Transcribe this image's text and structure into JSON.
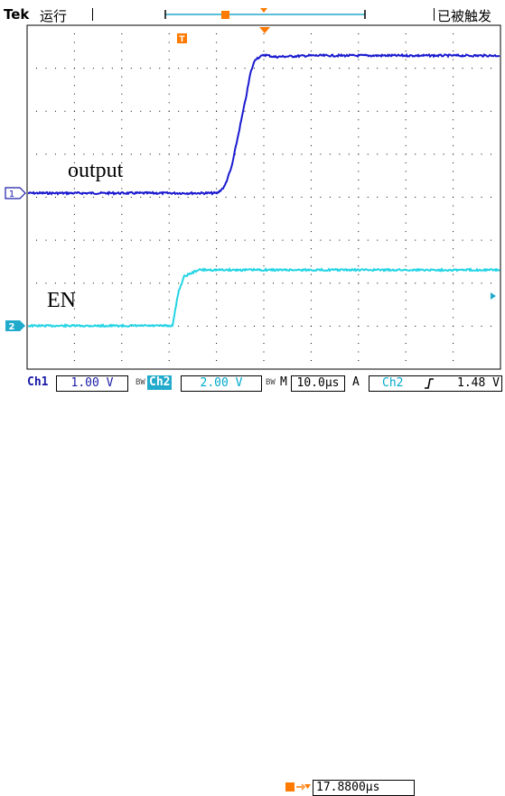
{
  "header": {
    "brand": "Tek",
    "status": "运行",
    "trigger_state": "已被触发"
  },
  "trace_labels": {
    "ch1": "output",
    "ch2": "EN"
  },
  "markers": {
    "ch1": "1",
    "ch2": "2",
    "trigger": "T"
  },
  "readout": {
    "ch1_name": "Ch1",
    "ch1_scale": "1.00 V",
    "ch2_name": "Ch2",
    "ch2_scale": "2.00 V",
    "bw1": "BW",
    "bw2": "BW",
    "timebase_prefix": "M",
    "timebase": "10.0µs",
    "trigger_mode": "A",
    "trigger_src": "Ch2",
    "trigger_slope_icon": "rising-edge-icon",
    "trigger_level": "1.48 V",
    "trigger_offset": "17.8800µs"
  },
  "colors": {
    "ch1": "#1a1ad0",
    "ch2": "#22d4e4",
    "trigger": "#ff7a00",
    "grid": "#000000",
    "frame": "#000000"
  },
  "chart_data": {
    "type": "line",
    "x_unit": "µs",
    "x_per_division": 10,
    "y_per_division_ch1": 1.0,
    "y_per_division_ch2": 2.0,
    "series": [
      {
        "name": "Ch1",
        "values": [
          [
            -50,
            0
          ],
          [
            -10,
            0
          ],
          [
            -8.5,
            0.15
          ],
          [
            -7,
            0.6
          ],
          [
            -5.5,
            1.4
          ],
          [
            -4,
            2.2
          ],
          [
            -3,
            2.8
          ],
          [
            -2,
            3.12
          ],
          [
            0,
            3.22
          ],
          [
            2,
            3.17
          ],
          [
            10,
            3.2
          ],
          [
            50,
            3.2
          ]
        ]
      },
      {
        "name": "Ch2",
        "values": [
          [
            -50,
            0
          ],
          [
            -19.5,
            0
          ],
          [
            -19,
            0.6
          ],
          [
            -18.2,
            1.6
          ],
          [
            -17,
            2.3
          ],
          [
            -14,
            2.6
          ],
          [
            50,
            2.6
          ]
        ]
      }
    ]
  }
}
